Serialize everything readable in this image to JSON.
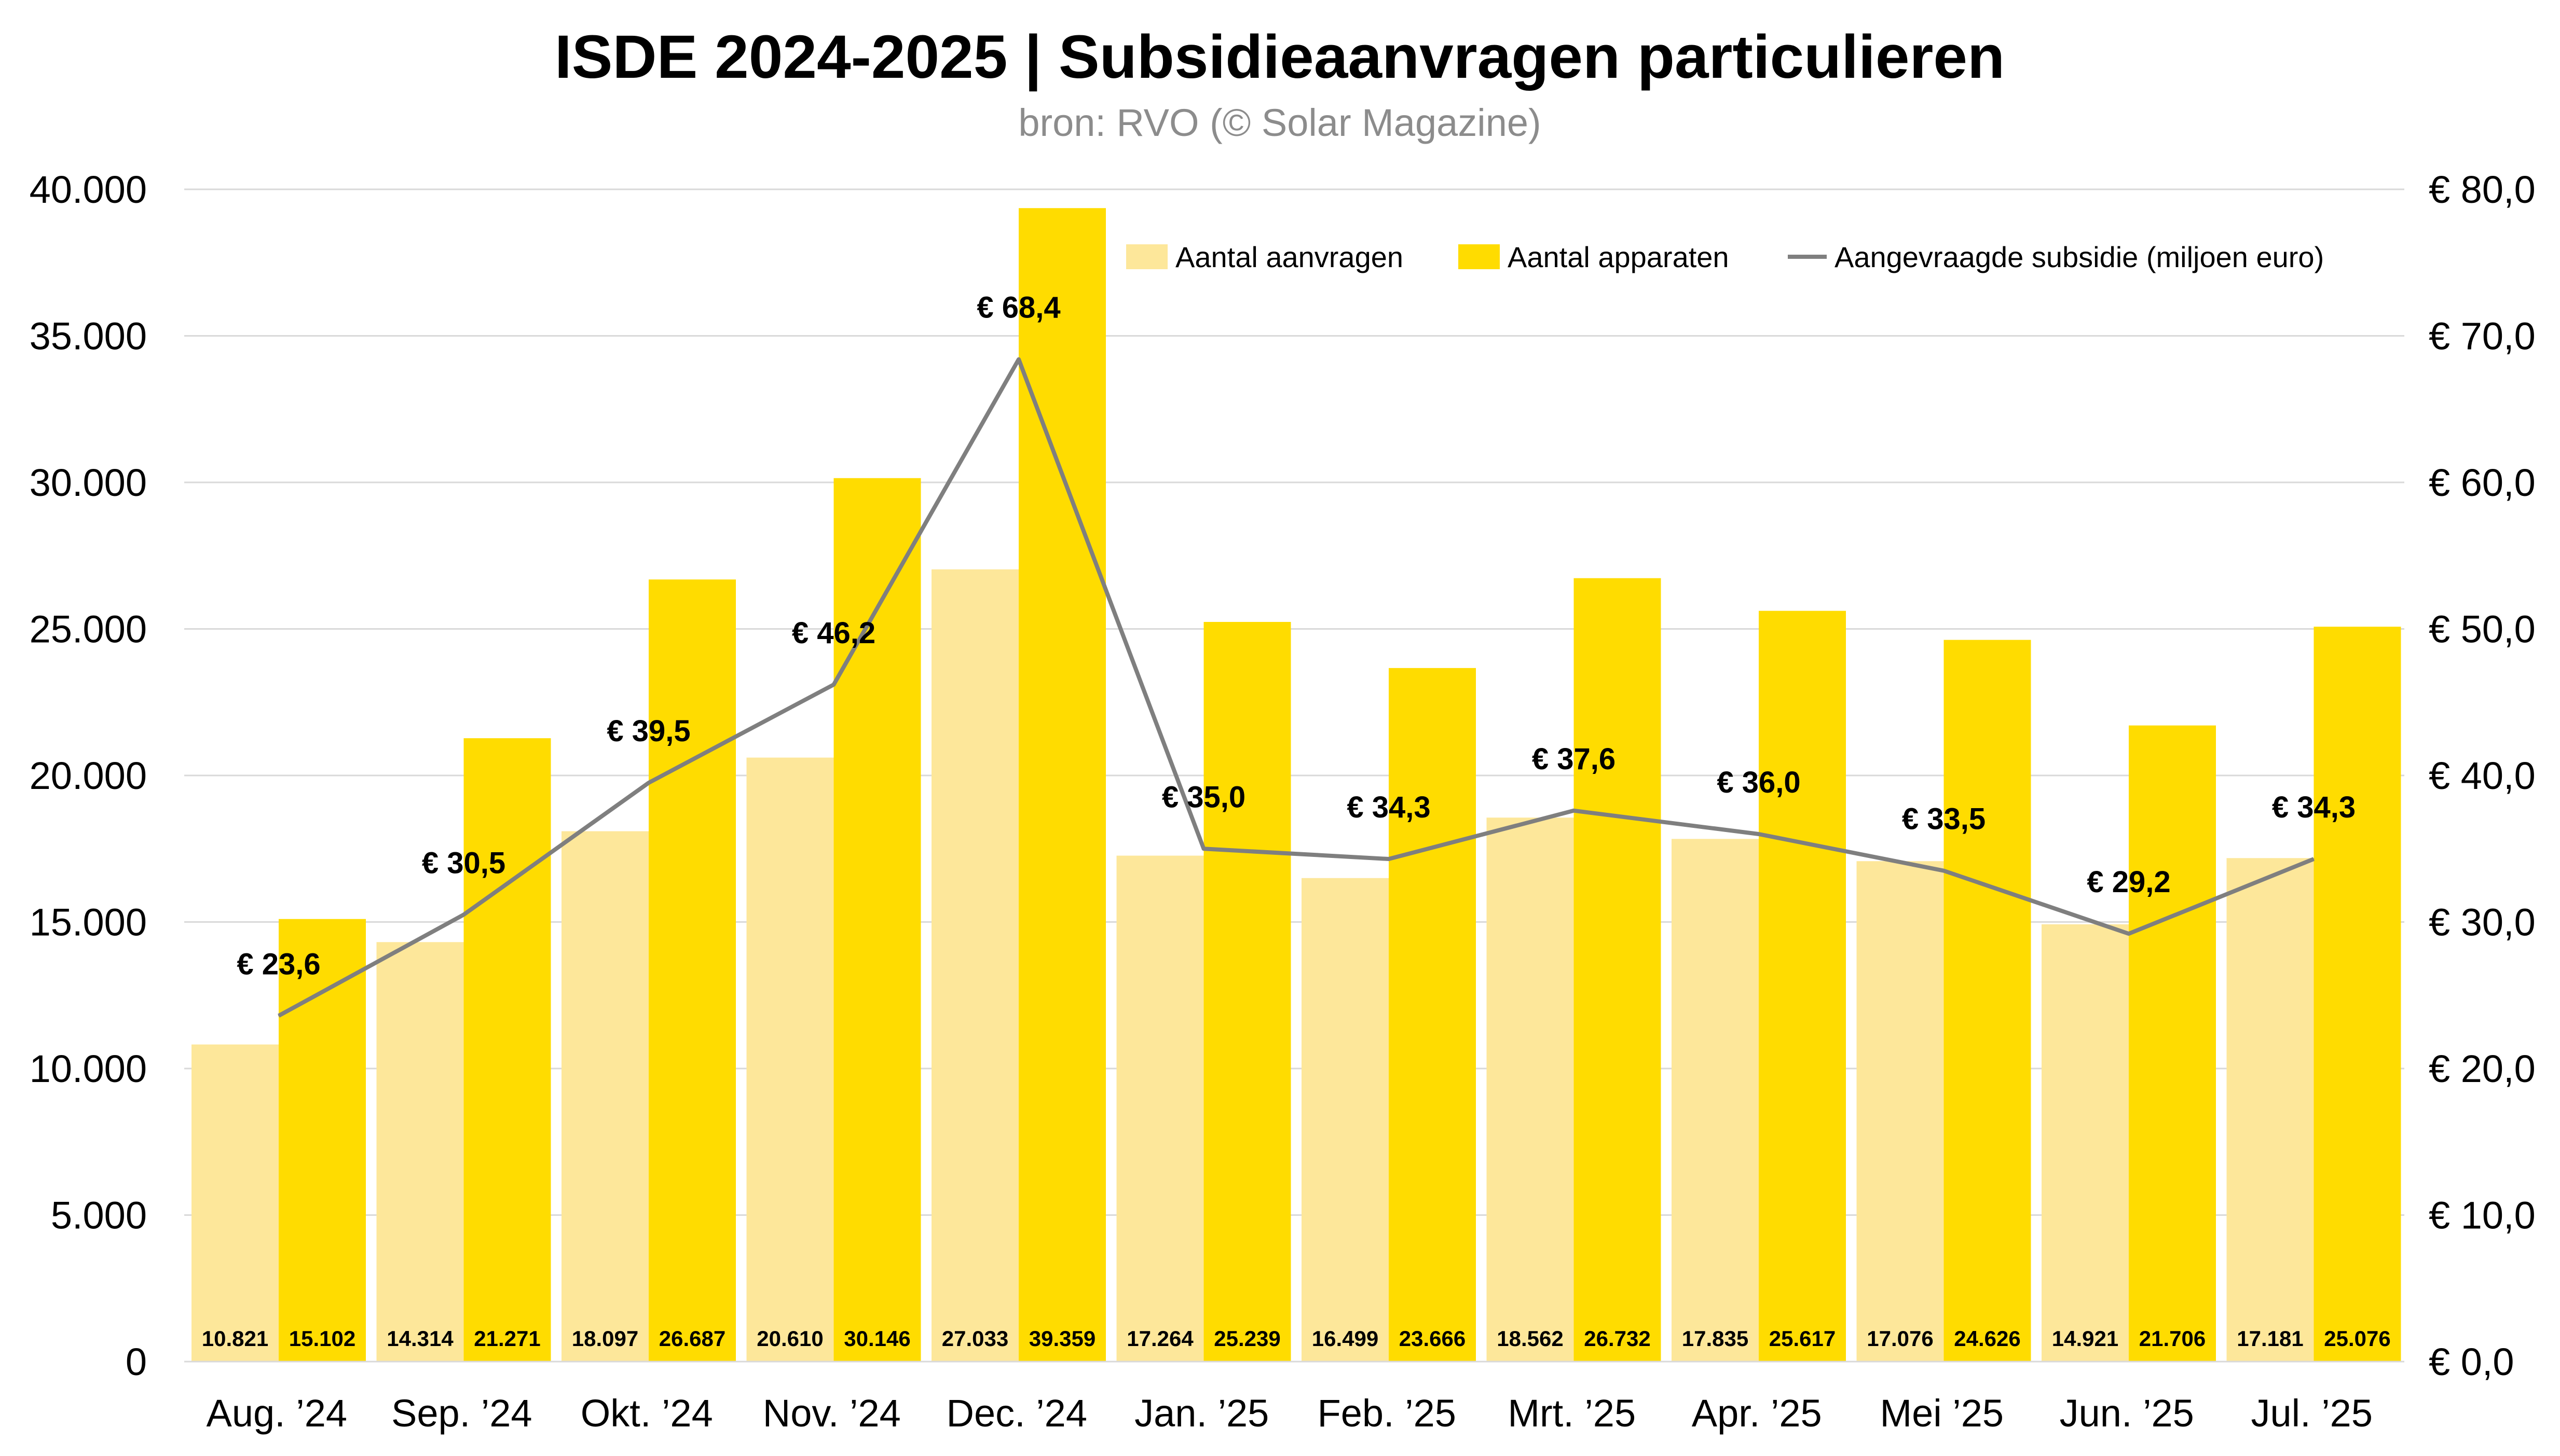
{
  "chart_data": {
    "type": "bar",
    "title": "ISDE 2024-2025 | Subsidieaanvragen particulieren",
    "subtitle": "bron: RVO (© Solar Magazine)",
    "categories": [
      "Aug. ’24",
      "Sep. ’24",
      "Okt. ’24",
      "Nov. ’24",
      "Dec. ’24",
      "Jan. ’25",
      "Feb. ’25",
      "Mrt. ’25",
      "Apr. ’25",
      "Mei ’25",
      "Jun. ’25",
      "Jul. ’25"
    ],
    "series": [
      {
        "name": "Aantal aanvragen",
        "type": "bar",
        "axis": "left",
        "color": "#fde79a",
        "values": [
          10821,
          14314,
          18097,
          20610,
          27033,
          17264,
          16499,
          18562,
          17835,
          17076,
          14921,
          17181
        ],
        "labels": [
          "10.821",
          "14.314",
          "18.097",
          "20.610",
          "27.033",
          "17.264",
          "16.499",
          "18.562",
          "17.835",
          "17.076",
          "14.921",
          "17.181"
        ]
      },
      {
        "name": "Aantal apparaten",
        "type": "bar",
        "axis": "left",
        "color": "#ffdc00",
        "values": [
          15102,
          21271,
          26687,
          30146,
          39359,
          25239,
          23666,
          26732,
          25617,
          24626,
          21706,
          25076
        ],
        "labels": [
          "15.102",
          "21.271",
          "26.687",
          "30.146",
          "39.359",
          "25.239",
          "23.666",
          "26.732",
          "25.617",
          "24.626",
          "21.706",
          "25.076"
        ]
      },
      {
        "name": "Aangevraagde subsidie (miljoen euro)",
        "type": "line",
        "axis": "right",
        "color": "#7f7f7f",
        "values": [
          23.6,
          30.5,
          39.5,
          46.2,
          68.4,
          35.0,
          34.3,
          37.6,
          36.0,
          33.5,
          29.2,
          34.3
        ],
        "labels": [
          "€ 23,6",
          "€ 30,5",
          "€ 39,5",
          "€ 46,2",
          "€ 68,4",
          "€ 35,0",
          "€ 34,3",
          "€ 37,6",
          "€ 36,0",
          "€ 33,5",
          "€ 29,2",
          "€ 34,3"
        ]
      }
    ],
    "ylim": [
      0,
      40000
    ],
    "y_ticks": [
      "0",
      "5.000",
      "10.000",
      "15.000",
      "20.000",
      "25.000",
      "30.000",
      "35.000",
      "40.000"
    ],
    "y2lim": [
      0,
      80
    ],
    "y2_ticks": [
      "€ 0,0",
      "€ 10,0",
      "€ 20,0",
      "€ 30,0",
      "€ 40,0",
      "€ 50,0",
      "€ 60,0",
      "€ 70,0",
      "€ 80,0"
    ],
    "grid": true,
    "legend_position": "top-right",
    "xlabel": "",
    "ylabel": ""
  }
}
